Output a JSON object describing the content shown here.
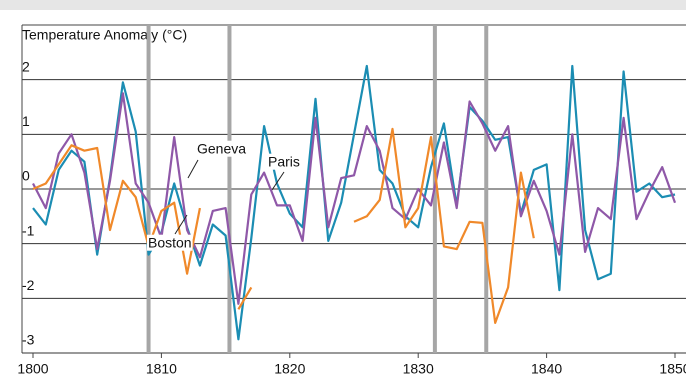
{
  "chart_data": {
    "type": "line",
    "y_label": "Temperature Anomaly (°C)",
    "x": [
      1800,
      1801,
      1802,
      1803,
      1804,
      1805,
      1806,
      1807,
      1808,
      1809,
      1810,
      1811,
      1812,
      1813,
      1814,
      1815,
      1816,
      1817,
      1818,
      1819,
      1820,
      1821,
      1822,
      1823,
      1824,
      1825,
      1826,
      1827,
      1828,
      1829,
      1830,
      1831,
      1832,
      1833,
      1834,
      1835,
      1836,
      1837,
      1838,
      1839,
      1840,
      1841,
      1842,
      1843,
      1844,
      1845,
      1846,
      1847,
      1848,
      1849,
      1850
    ],
    "series": [
      {
        "name": "Paris",
        "color": "#1b8db3",
        "values": [
          -0.35,
          -0.65,
          0.35,
          0.7,
          0.5,
          -1.2,
          0.2,
          1.95,
          1.05,
          -1.2,
          -0.8,
          0.1,
          -0.7,
          -1.4,
          -0.65,
          -0.85,
          -2.75,
          -0.9,
          1.15,
          0.1,
          -0.45,
          -0.7,
          1.65,
          -0.95,
          -0.25,
          1.0,
          2.25,
          0.35,
          0.1,
          -0.5,
          -0.7,
          0.4,
          1.2,
          -0.3,
          1.5,
          1.25,
          0.9,
          0.95,
          -0.45,
          0.35,
          0.45,
          -1.85,
          2.25,
          -0.75,
          -1.65,
          -1.55,
          2.15,
          -0.05,
          0.1,
          -0.15,
          -0.1
        ]
      },
      {
        "name": "Geneva",
        "color": "#8f58a8",
        "values": [
          0.1,
          -0.35,
          0.65,
          1.0,
          0.3,
          -1.1,
          0.15,
          1.75,
          0.1,
          -0.25,
          -0.9,
          0.95,
          -0.75,
          -1.25,
          -0.4,
          -0.35,
          -2.1,
          -0.1,
          0.3,
          -0.3,
          -0.3,
          -0.95,
          1.3,
          -0.7,
          0.2,
          0.25,
          1.15,
          0.7,
          -0.35,
          -0.55,
          0.0,
          -0.3,
          0.85,
          -0.35,
          1.6,
          1.2,
          0.7,
          1.15,
          -0.5,
          0.15,
          -0.4,
          -1.2,
          1.0,
          -1.15,
          -0.35,
          -0.55,
          1.3,
          -0.55,
          -0.05,
          0.4,
          -0.25
        ]
      },
      {
        "name": "Boston",
        "color": "#f0892a",
        "values": [
          0.0,
          0.1,
          0.45,
          0.8,
          0.7,
          0.75,
          -0.75,
          0.15,
          -0.15,
          -1.05,
          -0.4,
          -0.25,
          -1.55,
          -0.35,
          null,
          null,
          -2.2,
          -1.8,
          null,
          null,
          null,
          null,
          null,
          null,
          null,
          -0.6,
          -0.5,
          -0.2,
          1.1,
          -0.7,
          -0.35,
          0.95,
          -1.05,
          -1.1,
          -0.6,
          -0.62,
          -2.45,
          -1.8,
          0.3,
          -0.9,
          null,
          null,
          null,
          null,
          null,
          null,
          null,
          null,
          null,
          null,
          null
        ]
      }
    ],
    "reference_lines": [
      1809,
      1815.3,
      1831.3,
      1835.3
    ],
    "xlim": [
      1800,
      1850
    ],
    "xticks": [
      1800,
      1810,
      1820,
      1830,
      1840,
      1850
    ],
    "ylim": [
      -3,
      3
    ],
    "yticks": [
      -3,
      -2,
      -1,
      0,
      1,
      2
    ],
    "grid": true
  }
}
